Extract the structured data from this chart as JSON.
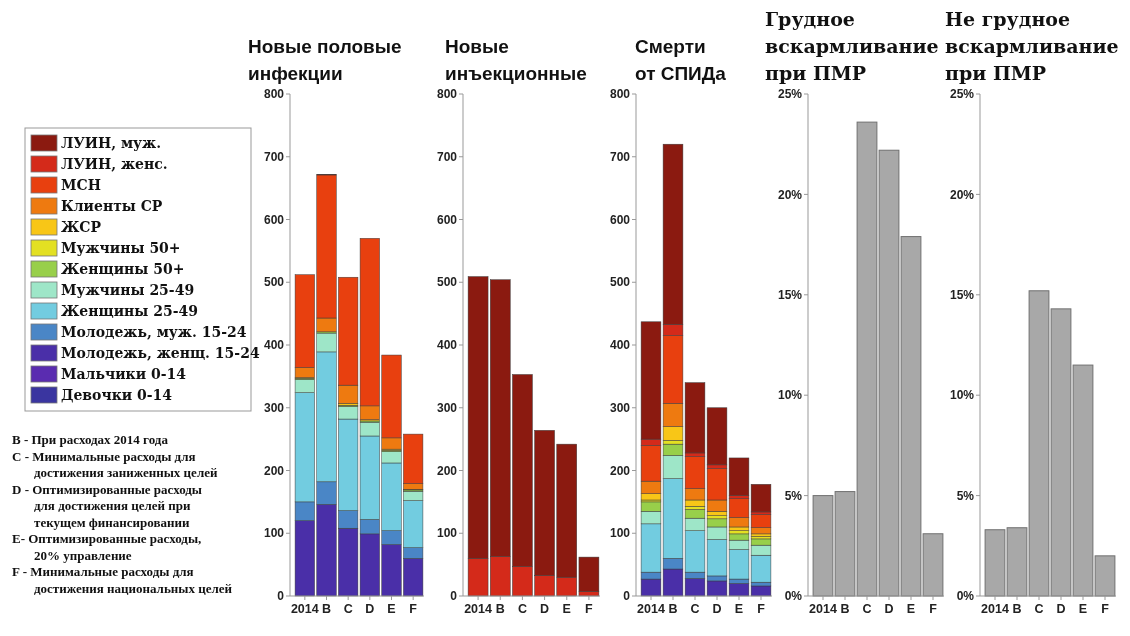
{
  "chart_data": [
    {
      "type": "bar",
      "title": "Новые половые инфекции",
      "stacked": true,
      "legend": "left",
      "categories": [
        "2014",
        "B",
        "C",
        "D",
        "E",
        "F"
      ],
      "ylim": [
        0,
        800
      ],
      "yticks": [
        0,
        100,
        200,
        300,
        400,
        500,
        600,
        700,
        800
      ],
      "series": [
        {
          "name": "Девочки 0-14",
          "color": "#3a35a0",
          "values": [
            0,
            0,
            0,
            0,
            0,
            0
          ]
        },
        {
          "name": "Мальчики 0-14",
          "color": "#5a2cb0",
          "values": [
            0,
            0,
            0,
            0,
            0,
            0
          ]
        },
        {
          "name": "Молодежь, женщ. 15-24",
          "color": "#4a2fa8",
          "values": [
            120,
            146,
            108,
            99,
            82,
            60
          ]
        },
        {
          "name": "Молодежь, муж. 15-24",
          "color": "#4a86c6",
          "values": [
            30,
            36,
            28,
            23,
            22,
            17
          ]
        },
        {
          "name": "Женщины 25-49",
          "color": "#72cce0",
          "values": [
            174,
            207,
            146,
            133,
            108,
            75
          ]
        },
        {
          "name": "Мужчины 25-49",
          "color": "#9ee6c8",
          "values": [
            21,
            30,
            20,
            22,
            18,
            15
          ]
        },
        {
          "name": "Женщины 50+",
          "color": "#98cf4a",
          "values": [
            2,
            2,
            2,
            2,
            2,
            2
          ]
        },
        {
          "name": "Мужчины 50+",
          "color": "#e3e022",
          "values": [
            1,
            0,
            0,
            0,
            0,
            0
          ]
        },
        {
          "name": "ЖСР",
          "color": "#f8c617",
          "values": [
            0,
            0,
            3,
            2,
            2,
            1
          ]
        },
        {
          "name": "Клиенты СР",
          "color": "#ee7a10",
          "values": [
            16,
            22,
            29,
            22,
            18,
            9
          ]
        },
        {
          "name": "МСН",
          "color": "#e8400f",
          "values": [
            148,
            228,
            172,
            267,
            132,
            79
          ]
        },
        {
          "name": "ЛУИН, женс.",
          "color": "#d42a1a",
          "values": [
            0,
            0,
            0,
            0,
            0,
            0
          ]
        },
        {
          "name": "ЛУИН, муж.",
          "color": "#8b1a10",
          "values": [
            0,
            1,
            0,
            0,
            0,
            0
          ]
        }
      ],
      "annotations": [
        "B - При расходах 2014 года",
        "C - Минимальные расходы для достижения заниженных целей",
        "D - Оптимизированные расходы для достижения целей при текущем финансировании",
        "E- Оптимизированные расходы, 20% управление",
        "F - Минимальные расходы  для достижения национальных целей"
      ]
    },
    {
      "type": "bar",
      "title": "Новые инъекционные",
      "stacked": true,
      "categories": [
        "2014",
        "B",
        "C",
        "D",
        "E",
        "F"
      ],
      "ylim": [
        0,
        800
      ],
      "yticks": [
        0,
        100,
        200,
        300,
        400,
        500,
        600,
        700,
        800
      ],
      "series": [
        {
          "color": "#d42a1a",
          "values": [
            60,
            63,
            47,
            33,
            30,
            7
          ]
        },
        {
          "color": "#8b1a10",
          "values": [
            449,
            441,
            306,
            231,
            212,
            55
          ]
        }
      ]
    },
    {
      "type": "bar",
      "title": "Смерти от СПИДа",
      "stacked": true,
      "categories": [
        "2014",
        "B",
        "C",
        "D",
        "E",
        "F"
      ],
      "ylim": [
        0,
        800
      ],
      "yticks": [
        0,
        100,
        200,
        300,
        400,
        500,
        600,
        700,
        800
      ],
      "series": [
        {
          "color": "#4a2fa8",
          "values": [
            27,
            43,
            28,
            24,
            20,
            16
          ]
        },
        {
          "color": "#4a86c6",
          "values": [
            11,
            17,
            10,
            8,
            7,
            6
          ]
        },
        {
          "color": "#72cce0",
          "values": [
            77,
            127,
            66,
            58,
            47,
            43
          ]
        },
        {
          "color": "#9ee6c8",
          "values": [
            20,
            37,
            20,
            20,
            15,
            16
          ]
        },
        {
          "color": "#98cf4a",
          "values": [
            15,
            18,
            14,
            13,
            10,
            10
          ]
        },
        {
          "color": "#e3e022",
          "values": [
            3,
            6,
            5,
            5,
            5,
            4
          ]
        },
        {
          "color": "#f8c617",
          "values": [
            10,
            22,
            10,
            7,
            6,
            4
          ]
        },
        {
          "color": "#ee7a10",
          "values": [
            20,
            37,
            18,
            18,
            15,
            10
          ]
        },
        {
          "color": "#e8400f",
          "values": [
            57,
            108,
            51,
            50,
            30,
            21
          ]
        },
        {
          "color": "#d42a1a",
          "values": [
            10,
            18,
            6,
            6,
            5,
            4
          ]
        },
        {
          "color": "#8b1a10",
          "values": [
            187,
            287,
            112,
            91,
            60,
            44
          ]
        }
      ]
    },
    {
      "type": "bar",
      "title": "Грудное вскармливание при ПМР",
      "categories": [
        "2014",
        "B",
        "C",
        "D",
        "E",
        "F"
      ],
      "ylim": [
        0,
        25
      ],
      "yticks": [
        {
          "value": 0,
          "label": "0%"
        },
        {
          "value": 5,
          "label": "5%"
        },
        {
          "value": 10,
          "label": "10%"
        },
        {
          "value": 15,
          "label": "15%"
        },
        {
          "value": 20,
          "label": "20%"
        },
        {
          "value": 25,
          "label": "25%"
        }
      ],
      "color": "#a8a8a8",
      "values": [
        5.0,
        5.2,
        23.6,
        22.2,
        17.9,
        3.1
      ]
    },
    {
      "type": "bar",
      "title": "Не грудное вскармливание при ПМР",
      "categories": [
        "2014",
        "B",
        "C",
        "D",
        "E",
        "F"
      ],
      "ylim": [
        0,
        25
      ],
      "yticks": [
        {
          "value": 0,
          "label": "0%"
        },
        {
          "value": 5,
          "label": "5%"
        },
        {
          "value": 10,
          "label": "10%"
        },
        {
          "value": 15,
          "label": "15%"
        },
        {
          "value": 20,
          "label": "20%"
        },
        {
          "value": 25,
          "label": "25%"
        }
      ],
      "color": "#a8a8a8",
      "values": [
        3.3,
        3.4,
        15.2,
        14.3,
        11.5,
        2.0
      ]
    }
  ]
}
